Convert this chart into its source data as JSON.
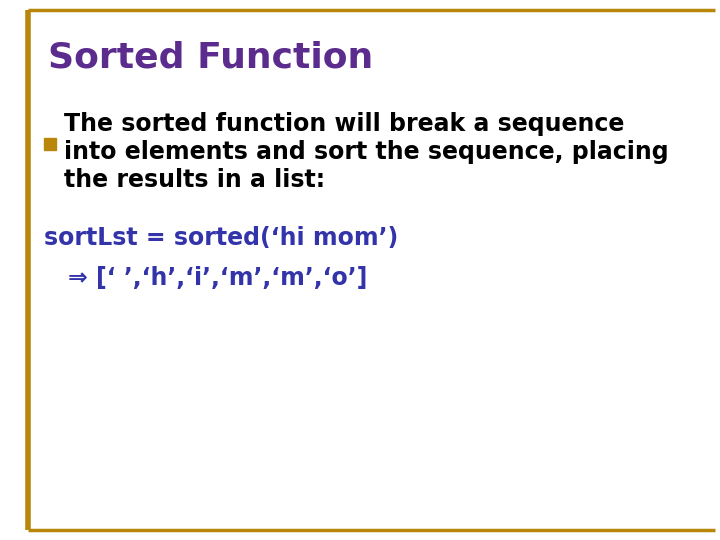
{
  "title": "Sorted Function",
  "title_color": "#5B2C8D",
  "title_fontsize": 26,
  "background_color": "#FFFFFF",
  "border_color": "#B8860B",
  "bullet_color": "#B8860B",
  "bullet_text_color": "#000000",
  "bullet_text_line1": "The sorted function will break a sequence",
  "bullet_text_line2": "into elements and sort the sequence, placing",
  "bullet_text_line3": "the results in a list:",
  "code_line1": "sortLst = sorted(‘hi mom’)",
  "code_line2": "⇒ [‘ ’,‘h’,‘i’,‘m’,‘m’,‘o’]",
  "code_color": "#3333AA",
  "code_fontsize": 17,
  "bullet_fontsize": 17,
  "figsize": [
    7.2,
    5.4
  ],
  "dpi": 100
}
